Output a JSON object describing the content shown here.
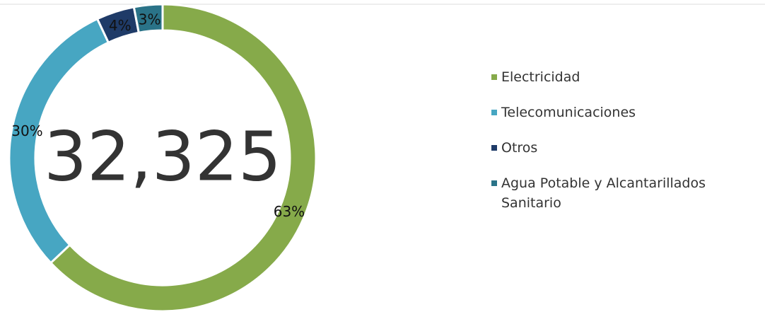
{
  "chart_data": {
    "type": "donut",
    "total_label": "32,325",
    "categories": [
      "Electricidad",
      "Telecomunicaciones",
      "Otros",
      "Agua Potable y Alcantarillados Sanitario"
    ],
    "values": [
      63,
      30,
      4,
      3
    ],
    "value_labels": [
      "63%",
      "30%",
      "4%",
      "3%"
    ],
    "colors": [
      "#86aa4a",
      "#47a6c2",
      "#1f3b68",
      "#2a7388"
    ],
    "legend": "right"
  }
}
